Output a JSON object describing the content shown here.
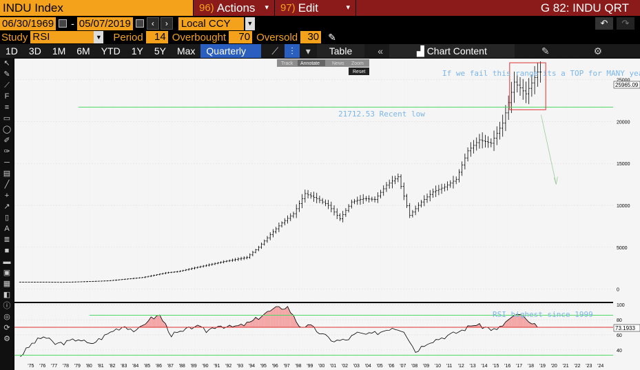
{
  "header": {
    "ticker": "INDU Index",
    "actions_num": "96)",
    "actions_label": "Actions",
    "edit_num": "97)",
    "edit_label": "Edit",
    "screen_title": "G 82: INDU QRT"
  },
  "range": {
    "start": "06/30/1969",
    "end": "05/07/2019",
    "currency": "Local CCY"
  },
  "study": {
    "study_label": "Study",
    "study_value": "RSI",
    "period_label": "Period",
    "period_value": "14",
    "overbought_label": "Overbought",
    "overbought_value": "70",
    "oversold_label": "Oversold",
    "oversold_value": "30"
  },
  "toolbar": {
    "timeframes": [
      "1D",
      "3D",
      "1M",
      "6M",
      "YTD",
      "1Y",
      "5Y",
      "Max"
    ],
    "period_select": "Quarterly",
    "table_label": "Table",
    "chart_content_label": "Chart Content"
  },
  "overlay": {
    "track": "Track",
    "annotate": "Annotate",
    "news": "News",
    "zoom": "Zoom",
    "reset": "Reset"
  },
  "colors": {
    "accent_orange": "#f4a21c",
    "menu_red": "#8b1a1a",
    "selected_blue": "#2b5fbf",
    "annotation_blue": "#7ab6ea",
    "support_green": "#4cd964",
    "box_red": "#e03030"
  },
  "chart_data": [
    {
      "type": "ohlc",
      "series": [
        {
          "name": "INDU",
          "frequency": "quarterly"
        }
      ],
      "x_range": [
        1974.0,
        2025.5
      ],
      "ylim": [
        -1500,
        27500
      ],
      "y_ticks": [
        0,
        5000,
        10000,
        15000,
        20000,
        25000
      ],
      "last_price_label": "25965.09",
      "x": [
        1975,
        1978,
        1980,
        1982,
        1985,
        1987,
        1988,
        1990,
        1992,
        1994,
        1995,
        1996,
        1997,
        1998,
        1999,
        2000,
        2001,
        2002,
        2003,
        2004,
        2005,
        2006,
        2007,
        2008,
        2009,
        2010,
        2011,
        2012,
        2013,
        2014,
        2015,
        2016,
        2017,
        2018,
        2019
      ],
      "values": [
        850,
        820,
        900,
        1000,
        1400,
        1950,
        2100,
        2700,
        3300,
        3800,
        5000,
        6500,
        7900,
        9000,
        11400,
        10800,
        10000,
        8400,
        10400,
        10800,
        10700,
        12400,
        13400,
        8800,
        10400,
        11600,
        12200,
        13100,
        16500,
        17800,
        17400,
        19800,
        24700,
        23300,
        25900
      ],
      "annotations": [
        {
          "text": "21712.53 Recent low",
          "y": 21712.53,
          "kind": "horizontal-line"
        },
        {
          "text": "If we fail this range its a TOP for MANY years",
          "kind": "text-box"
        }
      ],
      "grid": true
    },
    {
      "type": "line",
      "series": [
        {
          "name": "RSI",
          "period": 14
        }
      ],
      "x_range": [
        1974.0,
        2025.5
      ],
      "ylim": [
        28,
        102
      ],
      "y_ticks": [
        40,
        60,
        80,
        100
      ],
      "overbought": 70,
      "oversold": 30,
      "last_value_label": "73.1933",
      "x_tick_labels": [
        "'75",
        "'76",
        "'77",
        "'78",
        "'79",
        "'80",
        "'81",
        "'82",
        "'83",
        "'84",
        "'85",
        "'86",
        "'87",
        "'88",
        "'89",
        "'90",
        "'91",
        "'92",
        "'93",
        "'94",
        "'95",
        "'96",
        "'97",
        "'98",
        "'99",
        "'00",
        "'01",
        "'02",
        "'03",
        "'04",
        "'05",
        "'06",
        "'07",
        "'08",
        "'09",
        "'10",
        "'11",
        "'12",
        "'13",
        "'14",
        "'15",
        "'16",
        "'17",
        "'18",
        "'19",
        "'20",
        "'21",
        "'22",
        "'23",
        "'24"
      ],
      "x": [
        1974.5,
        1975.5,
        1976.5,
        1977.5,
        1978.5,
        1979.5,
        1980.5,
        1981.5,
        1982.5,
        1983.5,
        1984.5,
        1985.5,
        1986.5,
        1987.5,
        1988.5,
        1989.5,
        1990.5,
        1991.5,
        1992.5,
        1993.5,
        1994.5,
        1995.5,
        1996.5,
        1997.5,
        1998.5,
        1999.5,
        2000.5,
        2001.5,
        2002.5,
        2003.5,
        2004.5,
        2005.5,
        2006.5,
        2007.5,
        2008.5,
        2009.5,
        2010.5,
        2011.5,
        2012.5,
        2013.5,
        2014.5,
        2015.5,
        2016.5,
        2017.5,
        2018.5,
        2019.2
      ],
      "values": [
        32,
        48,
        58,
        48,
        50,
        55,
        47,
        56,
        66,
        72,
        64,
        80,
        86,
        60,
        64,
        72,
        65,
        73,
        70,
        72,
        78,
        88,
        95,
        97,
        72,
        71,
        60,
        52,
        53,
        62,
        60,
        64,
        70,
        66,
        38,
        50,
        55,
        60,
        66,
        74,
        70,
        66,
        80,
        88,
        72,
        73
      ],
      "annotations": [
        {
          "text": "RSI highest since 1999",
          "kind": "text"
        }
      ],
      "grid": true
    }
  ]
}
